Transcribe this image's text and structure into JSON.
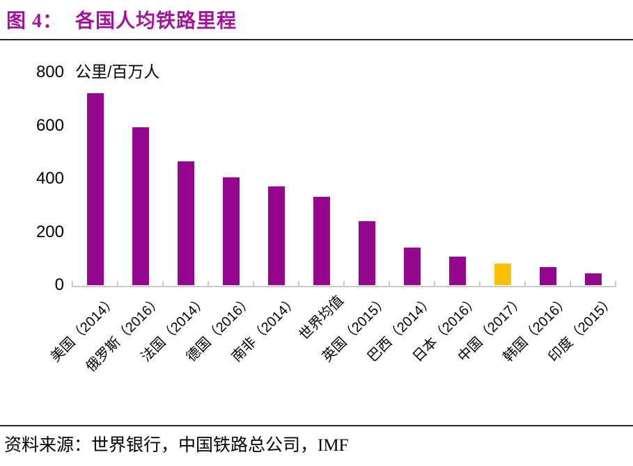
{
  "header": {
    "title_prefix": "图 4：",
    "title_text": "各国人均铁路里程",
    "title_color": "#A2149B"
  },
  "footer": {
    "source_text": "资料来源：世界银行，中国铁路总公司，IMF"
  },
  "chart_data": {
    "type": "bar",
    "title": "各国人均铁路里程",
    "unit_label": "公里/百万人",
    "categories": [
      "美国（2014）",
      "俄罗斯（2016）",
      "法国（2014）",
      "德国（2016）",
      "南非（2014）",
      "世界均值",
      "英国（2015）",
      "巴西（2014）",
      "日本（2016）",
      "中国（2017）",
      "韩国（2016）",
      "印度（2015）"
    ],
    "values": [
      721,
      593,
      466,
      406,
      371,
      333,
      241,
      140,
      108,
      81,
      69,
      44
    ],
    "highlight_index": 9,
    "bar_color": "#97068F",
    "highlight_color": "#FFC000",
    "yticks": [
      0,
      200,
      400,
      600,
      800
    ],
    "ylim": [
      0,
      800
    ],
    "grid": false,
    "legend": false,
    "xlabel": "",
    "ylabel": "公里/百万人",
    "axis_color": "#c9c9c9"
  }
}
